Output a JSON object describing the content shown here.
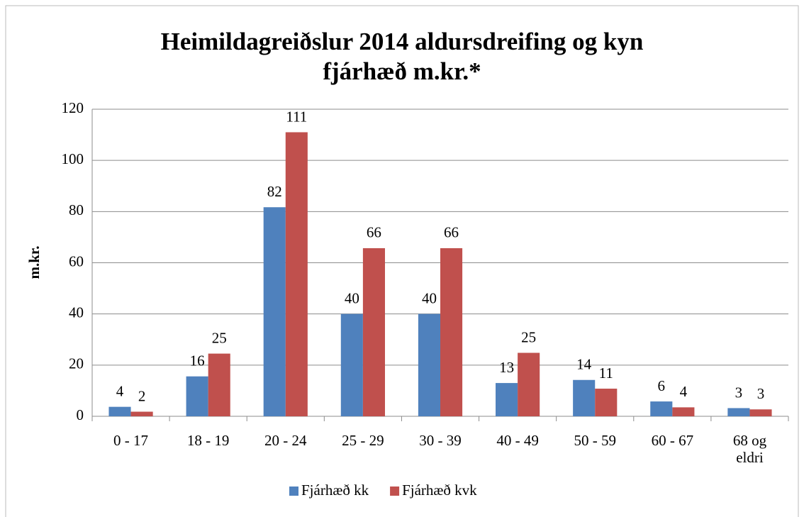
{
  "chart_data": {
    "type": "bar",
    "title": [
      "Heimildagreiðslur 2014 aldursdreifing og kyn",
      "fjárhæð m.kr.*"
    ],
    "ylabel": "m.kr.",
    "categories": [
      "0 - 17",
      "18 - 19",
      "20 - 24",
      "25 - 29",
      "30 - 39",
      "40 - 49",
      "50 - 59",
      "60 - 67",
      "68 og eldri"
    ],
    "series": [
      {
        "name": "Fjárhæð kk",
        "color": "#4f81bd",
        "values": [
          3.7,
          15.6,
          81.7,
          40,
          40,
          13,
          14.2,
          5.8,
          3.2
        ],
        "value_labels": [
          "4",
          "16",
          "82",
          "40",
          "40",
          "13",
          "14",
          "6",
          "3"
        ]
      },
      {
        "name": "Fjárhæð kvk",
        "color": "#c0504d",
        "values": [
          1.8,
          24.5,
          111,
          65.7,
          65.7,
          24.8,
          10.8,
          3.5,
          2.7
        ],
        "value_labels": [
          "2",
          "25",
          "111",
          "66",
          "66",
          "25",
          "11",
          "4",
          "3"
        ]
      }
    ],
    "ylim": [
      0,
      120
    ],
    "yticks": [
      0,
      20,
      40,
      60,
      80,
      100,
      120
    ],
    "grid": true,
    "legend": "bottom"
  }
}
